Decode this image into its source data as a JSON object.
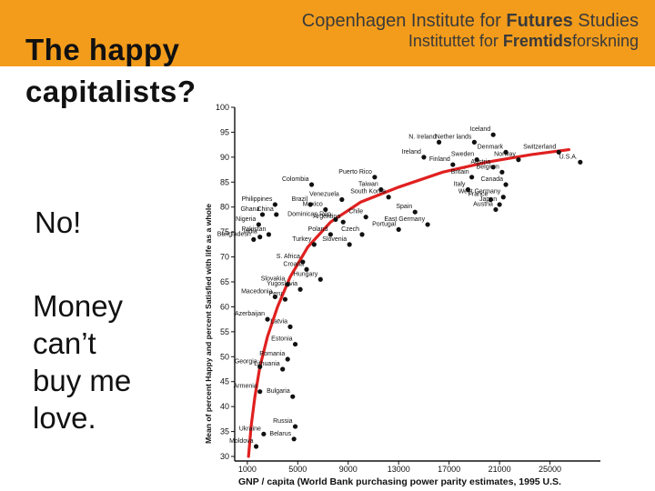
{
  "header": {
    "institute_prefix": "Copenhagen Institute for ",
    "institute_bold": "Futures",
    "institute_suffix": " Studies",
    "institut_prefix": "Instituttet for ",
    "institut_bold": "Fremtids",
    "institut_suffix": "forskning",
    "banner_color": "#f39c1b"
  },
  "slide": {
    "title_line1": "The happy",
    "title_line2": "capitalists?",
    "answer": "No!",
    "money_lines": [
      "Money",
      "can’t",
      "buy me",
      "love."
    ]
  },
  "chart_data": {
    "type": "scatter",
    "ylabel": "Mean of percent Happy and percent Satisfied with life as a whole",
    "xlabel": "GNP / capita (World Bank purchasing power parity estimates, 1995 U.S.",
    "xlim": [
      0,
      29000
    ],
    "ylim": [
      30,
      100
    ],
    "xticks": [
      1000,
      5000,
      9000,
      13000,
      17000,
      21000,
      25000
    ],
    "yticks": [
      30,
      35,
      40,
      45,
      50,
      55,
      60,
      65,
      70,
      75,
      80,
      85,
      90,
      95,
      100
    ],
    "trend_color": "#e02020",
    "trend": [
      [
        1100,
        30
      ],
      [
        1300,
        36
      ],
      [
        1600,
        42
      ],
      [
        2000,
        48
      ],
      [
        2600,
        54
      ],
      [
        3400,
        60
      ],
      [
        4400,
        66
      ],
      [
        5800,
        72
      ],
      [
        7600,
        77
      ],
      [
        10000,
        81
      ],
      [
        13000,
        84
      ],
      [
        16500,
        87
      ],
      [
        20000,
        89
      ],
      [
        23500,
        90.5
      ],
      [
        26500,
        91.5
      ]
    ],
    "points": [
      {
        "label": "Switzerland",
        "x": 25700,
        "y": 91
      },
      {
        "label": "U.S.A.",
        "x": 27400,
        "y": 89
      },
      {
        "label": "Iceland",
        "x": 20500,
        "y": 94.5
      },
      {
        "label": "Denmark",
        "x": 21500,
        "y": 91
      },
      {
        "label": "Nether lands",
        "x": 19000,
        "y": 93
      },
      {
        "label": "N. Ireland",
        "x": 16200,
        "y": 93
      },
      {
        "label": "Ireland",
        "x": 15000,
        "y": 90
      },
      {
        "label": "Finland",
        "x": 17300,
        "y": 88.5
      },
      {
        "label": "Sweden",
        "x": 19200,
        "y": 89.5
      },
      {
        "label": "Norway",
        "x": 22500,
        "y": 89.5
      },
      {
        "label": "Belgium",
        "x": 21200,
        "y": 87
      },
      {
        "label": "Austria",
        "x": 20500,
        "y": 88
      },
      {
        "label": "Britain",
        "x": 18800,
        "y": 86
      },
      {
        "label": "Canada",
        "x": 21500,
        "y": 84.5
      },
      {
        "label": "Italy",
        "x": 18500,
        "y": 83.5
      },
      {
        "label": "West Germany",
        "x": 21300,
        "y": 82
      },
      {
        "label": "France",
        "x": 20300,
        "y": 81.5
      },
      {
        "label": "Japan",
        "x": 21000,
        "y": 80.5
      },
      {
        "label": "Austria",
        "x": 20700,
        "y": 79.5
      },
      {
        "label": "Puerto Rico",
        "x": 11100,
        "y": 86
      },
      {
        "label": "Taiwan",
        "x": 11600,
        "y": 83.5
      },
      {
        "label": "South Korea",
        "x": 12200,
        "y": 82
      },
      {
        "label": "Spain",
        "x": 14300,
        "y": 79
      },
      {
        "label": "East Germany",
        "x": 15300,
        "y": 76.5
      },
      {
        "label": "Portugal",
        "x": 13000,
        "y": 75.5
      },
      {
        "label": "Chile",
        "x": 10400,
        "y": 78
      },
      {
        "label": "Argentina",
        "x": 8600,
        "y": 77
      },
      {
        "label": "Czech",
        "x": 10100,
        "y": 74.5
      },
      {
        "label": "Venezuela",
        "x": 8500,
        "y": 81.5
      },
      {
        "label": "Colombia",
        "x": 6100,
        "y": 84.5
      },
      {
        "label": "Mexico",
        "x": 7200,
        "y": 79.5
      },
      {
        "label": "Dominican Rep.",
        "x": 8000,
        "y": 77.5
      },
      {
        "label": "Poland",
        "x": 7600,
        "y": 74.5
      },
      {
        "label": "Turkey",
        "x": 6300,
        "y": 72.5
      },
      {
        "label": "Slovenia",
        "x": 9100,
        "y": 72.5
      },
      {
        "label": "Philippines",
        "x": 3200,
        "y": 80.5
      },
      {
        "label": "Brazil",
        "x": 6000,
        "y": 80.5
      },
      {
        "label": "Ghana",
        "x": 2200,
        "y": 78.5
      },
      {
        "label": "China",
        "x": 3300,
        "y": 78.5
      },
      {
        "label": "Nigeria",
        "x": 1900,
        "y": 76.5
      },
      {
        "label": "Bangladesh",
        "x": 1500,
        "y": 73.5
      },
      {
        "label": "Pakistan",
        "x": 2700,
        "y": 74.5
      },
      {
        "label": "India",
        "x": 2000,
        "y": 74
      },
      {
        "label": "S. Africa",
        "x": 5400,
        "y": 69
      },
      {
        "label": "Croatia",
        "x": 5700,
        "y": 67.5
      },
      {
        "label": "Hungary",
        "x": 6800,
        "y": 65.5
      },
      {
        "label": "Slovakia",
        "x": 4200,
        "y": 64.5
      },
      {
        "label": "Yugoslavia",
        "x": 5200,
        "y": 63.5
      },
      {
        "label": "Macedonia",
        "x": 3200,
        "y": 62
      },
      {
        "label": "Peru",
        "x": 4000,
        "y": 61.5
      },
      {
        "label": "Azerbaijan",
        "x": 2600,
        "y": 57.5
      },
      {
        "label": "Latvia",
        "x": 4400,
        "y": 56
      },
      {
        "label": "Estonia",
        "x": 4800,
        "y": 52.5
      },
      {
        "label": "Romania",
        "x": 4200,
        "y": 49.5
      },
      {
        "label": "Georgia",
        "x": 2000,
        "y": 48
      },
      {
        "label": "Lithuania",
        "x": 3800,
        "y": 47.5
      },
      {
        "label": "Armenia",
        "x": 2000,
        "y": 43
      },
      {
        "label": "Bulgaria",
        "x": 4600,
        "y": 42
      },
      {
        "label": "Russia",
        "x": 4800,
        "y": 36
      },
      {
        "label": "Ukraine",
        "x": 2300,
        "y": 34.5
      },
      {
        "label": "Belarus",
        "x": 4700,
        "y": 33.5
      },
      {
        "label": "Moldova",
        "x": 1700,
        "y": 32
      }
    ]
  }
}
